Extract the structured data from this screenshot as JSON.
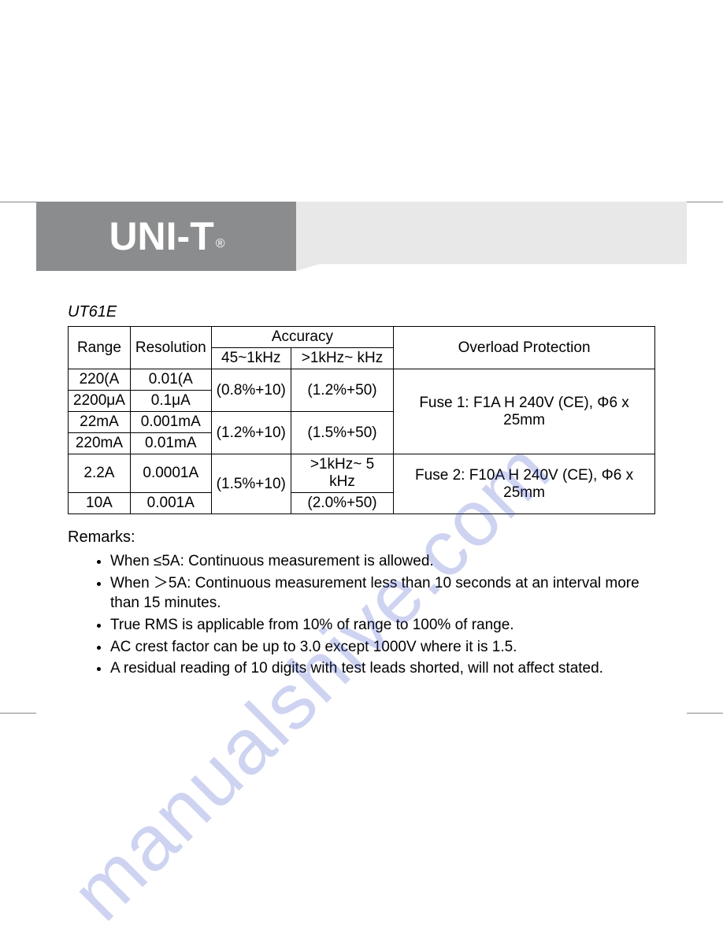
{
  "brand": "UNI-T",
  "brand_mark": "®",
  "colors": {
    "band_gray": "#8b8c8e",
    "band_light": "#e8e8e9",
    "text": "#000000",
    "watermark": "rgba(60,80,200,0.25)"
  },
  "watermark_text": "manualshive.com",
  "model": "UT61E",
  "table": {
    "headers": {
      "range": "Range",
      "resolution": "Resolution",
      "accuracy": "Accuracy",
      "acc_col1": "45~1kHz",
      "acc_col2": ">1kHz~   kHz",
      "overload": "Overload Protection"
    },
    "rows": [
      {
        "range": "220(A",
        "resolution": "0.01(A"
      },
      {
        "range": "2200μA",
        "resolution": "0.1μA"
      },
      {
        "range": "22mA",
        "resolution": "0.001mA"
      },
      {
        "range": "220mA",
        "resolution": "0.01mA"
      },
      {
        "range": "2.2A",
        "resolution": "0.0001A"
      },
      {
        "range": "10A",
        "resolution": "0.001A"
      }
    ],
    "accuracy_cells": {
      "a1": "(0.8%+10)",
      "a2": "(1.2%+50)",
      "b1": "(1.2%+10)",
      "b2": "(1.5%+50)",
      "c1": "(1.5%+10)",
      "c2a": ">1kHz~ 5 kHz",
      "c2b": "(2.0%+50)"
    },
    "overload_cells": {
      "o1": "Fuse 1: F1A H 240V (CE), Φ6 x 25mm",
      "o2": "Fuse 2: F10A H 240V (CE), Φ6 x 25mm"
    }
  },
  "remarks_heading": "Remarks:",
  "remarks": [
    "When  ≤5A: Continuous measurement is allowed.",
    "When  ＞5A: Continuous measurement less than 10 seconds at an interval more than 15 minutes.",
    "True RMS is applicable from 10% of range to 100% of range.",
    "AC crest factor can be up to 3.0 except 1000V where it is 1.5.",
    "A residual reading of 10 digits with test leads shorted, will not affect stated."
  ]
}
